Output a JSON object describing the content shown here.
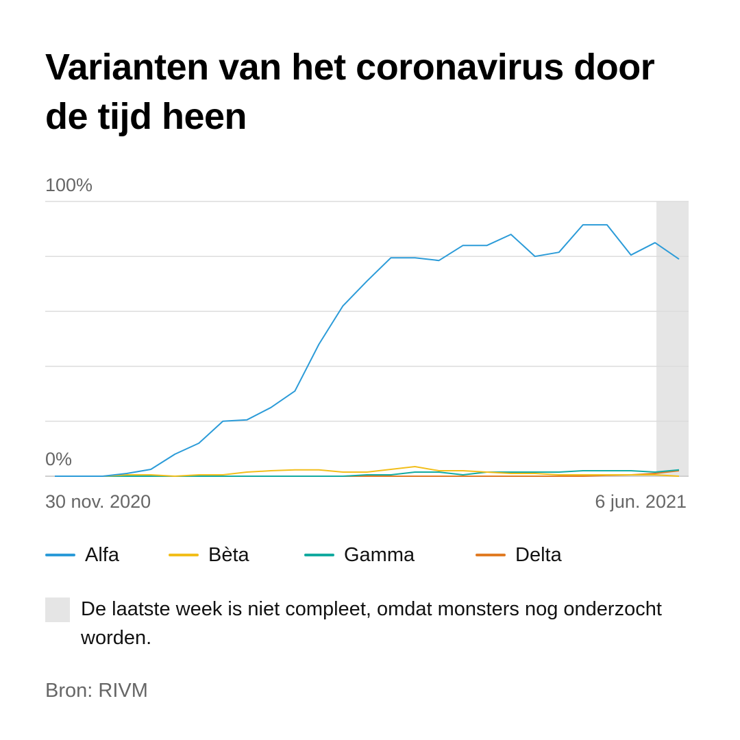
{
  "title": "Varianten van het coronavirus door de tijd heen",
  "chart_data": {
    "type": "line",
    "x_start_label": "30 nov. 2020",
    "x_end_label": "6 jun. 2021",
    "y_top_label": "100%",
    "y_bottom_label": "0%",
    "ylim": [
      0,
      100
    ],
    "grid": true,
    "shaded_last_period": true,
    "series": [
      {
        "name": "Alfa",
        "color": "#2b9bd8",
        "values": [
          0,
          0,
          0,
          1,
          2.5,
          8,
          12,
          20,
          20.5,
          25,
          31,
          48,
          62,
          71,
          79.5,
          79.5,
          78.5,
          84,
          84,
          88,
          80,
          81.5,
          91.5,
          91.5,
          80.5,
          85,
          79
        ]
      },
      {
        "name": "Bèta",
        "color": "#f2be1a",
        "values": [
          0,
          0,
          0,
          0.5,
          0.5,
          0,
          0.5,
          0.5,
          1.5,
          2,
          2.3,
          2.3,
          1.5,
          1.5,
          2.5,
          3.5,
          2,
          2,
          1.5,
          1,
          1,
          0.5,
          0.5,
          0.5,
          0.5,
          0.5,
          0
        ]
      },
      {
        "name": "Gamma",
        "color": "#12aaa0",
        "values": [
          0,
          0,
          0,
          0,
          0,
          0,
          0,
          0,
          0,
          0,
          0,
          0,
          0,
          0.5,
          0.5,
          1.5,
          1.5,
          0.5,
          1.5,
          1.5,
          1.5,
          1.5,
          2,
          2,
          2,
          1.5,
          2.3
        ]
      },
      {
        "name": "Delta",
        "color": "#e07b24",
        "values": [
          0,
          0,
          0,
          0,
          0,
          0,
          0,
          0,
          0,
          0,
          0,
          0,
          0,
          0,
          0,
          0,
          0,
          0,
          0,
          0,
          0,
          0,
          0,
          0.3,
          0.5,
          1,
          2
        ]
      }
    ]
  },
  "note": {
    "text": "De laatste week is niet compleet, omdat monsters nog onderzocht worden."
  },
  "source": "Bron: RIVM"
}
